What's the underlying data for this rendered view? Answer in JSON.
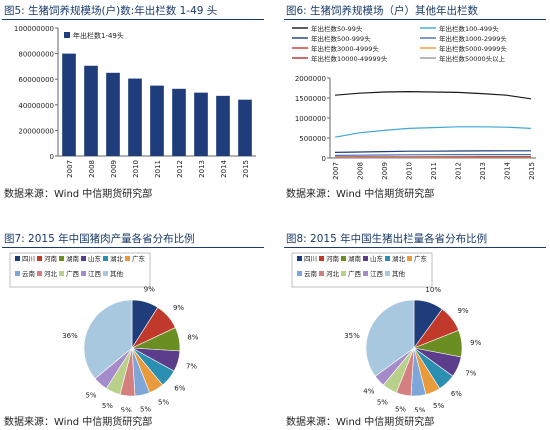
{
  "source_text": "数据来源：Wind  中信期货研究部",
  "chart_data": [
    {
      "id": "fig5",
      "type": "bar",
      "title": "图5: 生猪饲养规模场(户)数:年出栏数 1-49 头",
      "categories": [
        "2007",
        "2008",
        "2009",
        "2010",
        "2011",
        "2012",
        "2013",
        "2014",
        "2015"
      ],
      "series": [
        {
          "name": "年出栏数1-49头",
          "values": [
            80000000,
            70500000,
            65000000,
            60500000,
            55000000,
            52500000,
            49500000,
            47000000,
            44000000
          ]
        }
      ],
      "ylim": [
        0,
        100000000
      ],
      "yticks": [
        "100000000",
        "80000000",
        "60000000",
        "40000000",
        "20000000",
        "0"
      ],
      "bar_color": "#1f3d7a",
      "legend_position": "top-left"
    },
    {
      "id": "fig6",
      "type": "line",
      "title": "图6: 生猪饲养规模场（户）其他年出栏数",
      "categories": [
        "2007",
        "2008",
        "2009",
        "2010",
        "2011",
        "2012",
        "2013",
        "2014",
        "2015"
      ],
      "ylim": [
        0,
        2000000
      ],
      "yticks": [
        "2000000",
        "1500000",
        "1000000",
        "500000",
        "0"
      ],
      "legend_position": "top",
      "series": [
        {
          "name": "年出栏数50-99头",
          "color": "#1a1a1a",
          "values": [
            1570000,
            1620000,
            1650000,
            1660000,
            1650000,
            1640000,
            1610000,
            1570000,
            1480000
          ]
        },
        {
          "name": "年出栏数100-499头",
          "color": "#3fa7d6",
          "values": [
            520000,
            630000,
            690000,
            740000,
            760000,
            780000,
            780000,
            770000,
            740000
          ]
        },
        {
          "name": "年出栏数500-999头",
          "color": "#1f3d7a",
          "values": [
            140000,
            150000,
            160000,
            170000,
            170000,
            175000,
            178000,
            180000,
            180000
          ]
        },
        {
          "name": "年出栏数1000-2999头",
          "color": "#4a6fb5",
          "values": [
            65000,
            70000,
            75000,
            80000,
            82000,
            84000,
            85000,
            86000,
            86000
          ]
        },
        {
          "name": "年出栏数3000-4999头",
          "color": "#c0392b",
          "values": [
            25000,
            27000,
            29000,
            31000,
            32000,
            33000,
            34000,
            34000,
            34000
          ]
        },
        {
          "name": "年出栏数5000-9999头",
          "color": "#e89a3c",
          "values": [
            10000,
            11000,
            12000,
            13000,
            14000,
            15000,
            15000,
            16000,
            16000
          ]
        },
        {
          "name": "年出栏数10000-49999头",
          "color": "#b5302a",
          "values": [
            4000,
            4500,
            5000,
            5500,
            6000,
            6500,
            7000,
            7500,
            8000
          ]
        },
        {
          "name": "年出栏数50000头以上",
          "color": "#9a9a9a",
          "values": [
            200,
            250,
            300,
            350,
            400,
            450,
            500,
            550,
            600
          ]
        }
      ]
    },
    {
      "id": "fig7",
      "type": "pie",
      "title": "图7:  2015 年中国猪肉产量各省分布比例",
      "legend": [
        "四川",
        "河南",
        "湖南",
        "山东",
        "湖北",
        "广东",
        "云南",
        "河北",
        "广西",
        "江西",
        "其他"
      ],
      "values": [
        9,
        9,
        8,
        7,
        6,
        5,
        5,
        5,
        5,
        5,
        36
      ],
      "data_labels": [
        "9%",
        "9%",
        "8%",
        "7%",
        "6%",
        "5%",
        "5%",
        "5%",
        "5%",
        "5%",
        "36%"
      ],
      "colors": [
        "#1f3d7a",
        "#c0392b",
        "#6b8e23",
        "#5b3d8c",
        "#2a8fb0",
        "#e89a3c",
        "#7fa6d9",
        "#d48080",
        "#b8d08a",
        "#a58bc9",
        "#a8c8e0"
      ]
    },
    {
      "id": "fig8",
      "type": "pie",
      "title": "图8: 2015 年中国生猪出栏量各省分布比例",
      "legend": [
        "四川",
        "河南",
        "湖南",
        "山东",
        "湖北",
        "广东",
        "云南",
        "河北",
        "广西",
        "江西",
        "其他"
      ],
      "values": [
        10,
        9,
        9,
        7,
        6,
        5,
        5,
        5,
        5,
        4,
        35
      ],
      "data_labels": [
        "10%",
        "9%",
        "9%",
        "7%",
        "6%",
        "5%",
        "5%",
        "5%",
        "5%",
        "4%",
        "35%"
      ],
      "colors": [
        "#1f3d7a",
        "#c0392b",
        "#6b8e23",
        "#5b3d8c",
        "#2a8fb0",
        "#e89a3c",
        "#7fa6d9",
        "#d48080",
        "#b8d08a",
        "#a58bc9",
        "#a8c8e0"
      ]
    }
  ]
}
